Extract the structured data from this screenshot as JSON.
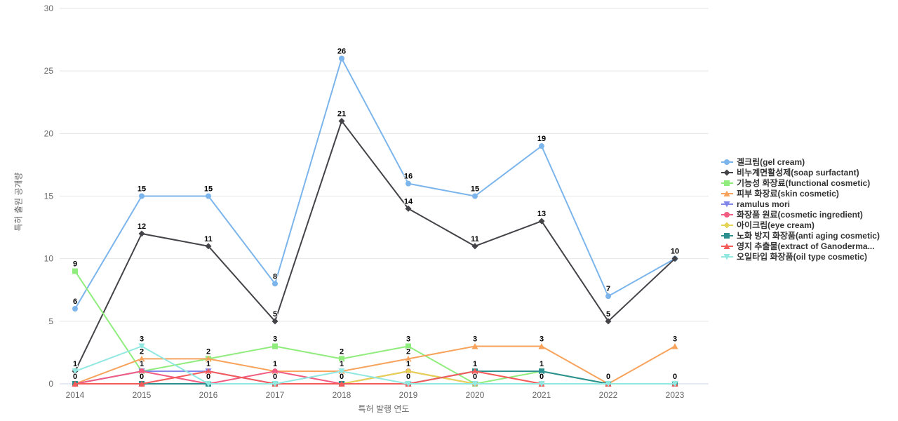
{
  "chart_data": {
    "type": "line",
    "title": "",
    "xlabel": "특허 발행 연도",
    "ylabel": "특허 출원 공개량",
    "categories": [
      "2014",
      "2015",
      "2016",
      "2017",
      "2018",
      "2019",
      "2020",
      "2021",
      "2022",
      "2023"
    ],
    "ylim": [
      0,
      30
    ],
    "yticks": [
      0,
      5,
      10,
      15,
      20,
      25,
      30
    ],
    "grid": true,
    "legend_position": "right",
    "data_labels": true,
    "colors": {
      "gridline": "#e6e6e6",
      "axis_line": "#ccd6eb",
      "tick_text": "#666666",
      "legend_text": "#333333"
    },
    "series": [
      {
        "name": "겔크림(gel cream)",
        "color": "#7cb5ec",
        "marker": "circle",
        "values": [
          6,
          15,
          15,
          8,
          26,
          16,
          15,
          19,
          7,
          10
        ]
      },
      {
        "name": "비누계면활성제(soap surfactant)",
        "color": "#434348",
        "marker": "diamond",
        "values": [
          1,
          12,
          11,
          5,
          21,
          14,
          11,
          13,
          5,
          10
        ]
      },
      {
        "name": "기능성 화장료(functional cosmetic)",
        "color": "#90ed7d",
        "marker": "square",
        "values": [
          9,
          1,
          2,
          3,
          2,
          3,
          0,
          1,
          0,
          0
        ]
      },
      {
        "name": "피부 화장료(skin cosmetic)",
        "color": "#f7a35c",
        "marker": "triangle",
        "values": [
          0,
          2,
          2,
          1,
          1,
          2,
          3,
          3,
          0,
          3
        ]
      },
      {
        "name": "ramulus mori",
        "color": "#8085e9",
        "marker": "triangle-down",
        "values": [
          0,
          1,
          1,
          0,
          0,
          0,
          0,
          0,
          0,
          0
        ]
      },
      {
        "name": "화장품 원료(cosmetic ingredient)",
        "color": "#f15c80",
        "marker": "circle",
        "values": [
          0,
          1,
          0,
          1,
          0,
          1,
          0,
          0,
          0,
          0
        ]
      },
      {
        "name": "아이크림(eye cream)",
        "color": "#e4d354",
        "marker": "diamond",
        "values": [
          0,
          0,
          0,
          0,
          0,
          1,
          0,
          0,
          0,
          0
        ]
      },
      {
        "name": "노화 방지 화장품(anti aging cosmetic)",
        "color": "#2b908f",
        "marker": "square",
        "values": [
          0,
          0,
          0,
          0,
          0,
          0,
          1,
          1,
          0,
          0
        ]
      },
      {
        "name": "영지 추출물(extract of Ganoderma...",
        "color": "#f45b5b",
        "marker": "triangle",
        "values": [
          0,
          0,
          1,
          0,
          0,
          0,
          1,
          0,
          0,
          0
        ]
      },
      {
        "name": "오일타입 화장품(oil type cosmetic)",
        "color": "#91e8e1",
        "marker": "triangle-down",
        "values": [
          1,
          3,
          0,
          0,
          1,
          0,
          0,
          0,
          0,
          0
        ]
      }
    ]
  }
}
